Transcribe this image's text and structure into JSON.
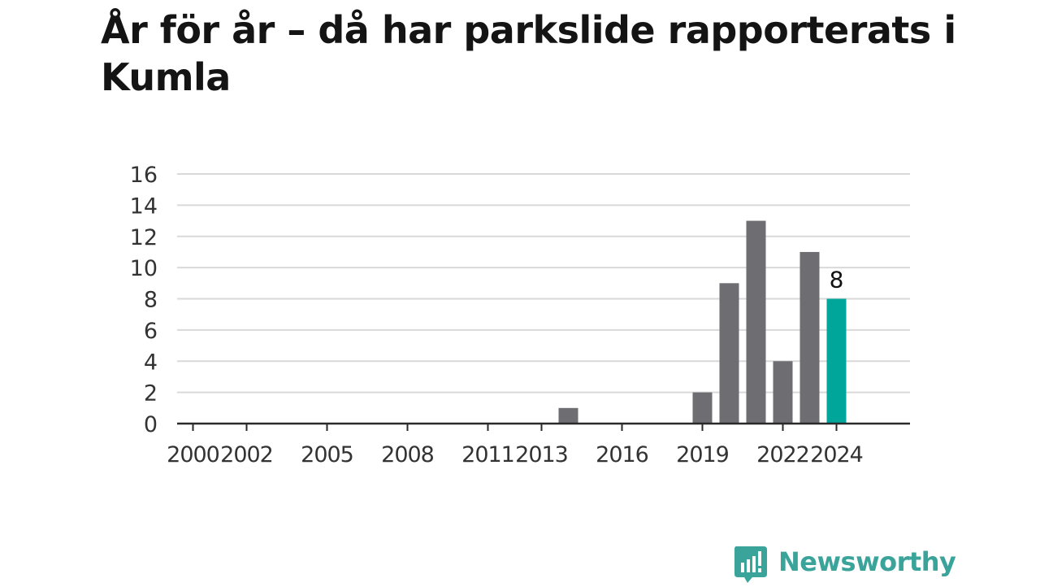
{
  "title": "År för år – då har parkslide rapporterats i Kumla",
  "brand": {
    "name": "Newsworthy",
    "color": "#3aa39a"
  },
  "chart_data": {
    "type": "bar",
    "years": [
      2000,
      2001,
      2002,
      2003,
      2004,
      2005,
      2006,
      2007,
      2008,
      2009,
      2010,
      2011,
      2012,
      2013,
      2014,
      2015,
      2016,
      2017,
      2018,
      2019,
      2020,
      2021,
      2022,
      2023,
      2024
    ],
    "values": [
      0,
      0,
      0,
      0,
      0,
      0,
      0,
      0,
      0,
      0,
      0,
      0,
      0,
      0,
      1,
      0,
      0,
      0,
      0,
      2,
      9,
      13,
      4,
      11,
      8
    ],
    "x_tick_labels": [
      "2000",
      "2002",
      "2005",
      "2008",
      "2011",
      "2013",
      "2016",
      "2019",
      "2022",
      "2024"
    ],
    "y_ticks": [
      0,
      2,
      4,
      6,
      8,
      10,
      12,
      14,
      16
    ],
    "ylim": [
      0,
      16
    ],
    "highlight": {
      "year": 2024,
      "label": "8"
    },
    "colors": {
      "bar": "#6e6d72",
      "highlight": "#00a69a",
      "grid": "#d9d9d9",
      "axis": "#2a2a2a",
      "text": "#333333"
    },
    "grid": true,
    "legend": "none"
  }
}
